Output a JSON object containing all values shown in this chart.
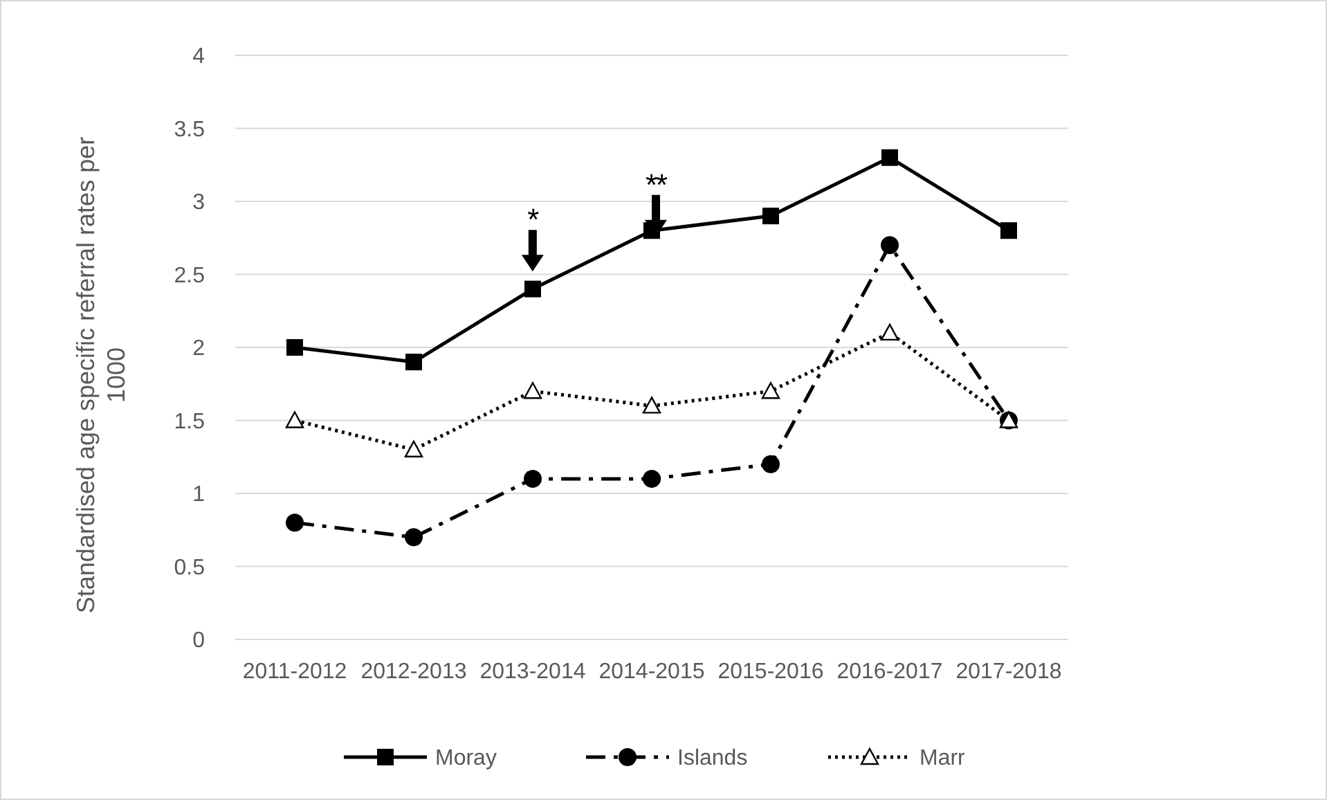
{
  "chart_data": {
    "type": "line",
    "ylabel": "Standardised age specific referral rates per 1000",
    "categories": [
      "2011-2012",
      "2012-2013",
      "2013-2014",
      "2014-2015",
      "2015-2016",
      "2016-2017",
      "2017-2018"
    ],
    "series": [
      {
        "name": "Moray",
        "color": "#000000",
        "marker": "square",
        "line_style": "solid",
        "values": [
          2.0,
          1.9,
          2.4,
          2.8,
          2.9,
          3.3,
          2.8
        ]
      },
      {
        "name": "Islands",
        "color": "#000000",
        "marker": "circle",
        "line_style": "dashed",
        "values": [
          0.8,
          0.7,
          1.1,
          1.1,
          1.2,
          2.7,
          1.5
        ]
      },
      {
        "name": "Marr",
        "color": "#000000",
        "marker": "triangle",
        "line_style": "dotted",
        "values": [
          1.5,
          1.3,
          1.7,
          1.6,
          1.7,
          2.1,
          1.5
        ]
      }
    ],
    "ylim": [
      0,
      4
    ],
    "yticks": [
      0,
      0.5,
      1,
      1.5,
      2,
      2.5,
      3,
      3.5,
      4
    ],
    "grid": "y",
    "legend": "bottom",
    "annotations": [
      "*",
      "**"
    ]
  }
}
